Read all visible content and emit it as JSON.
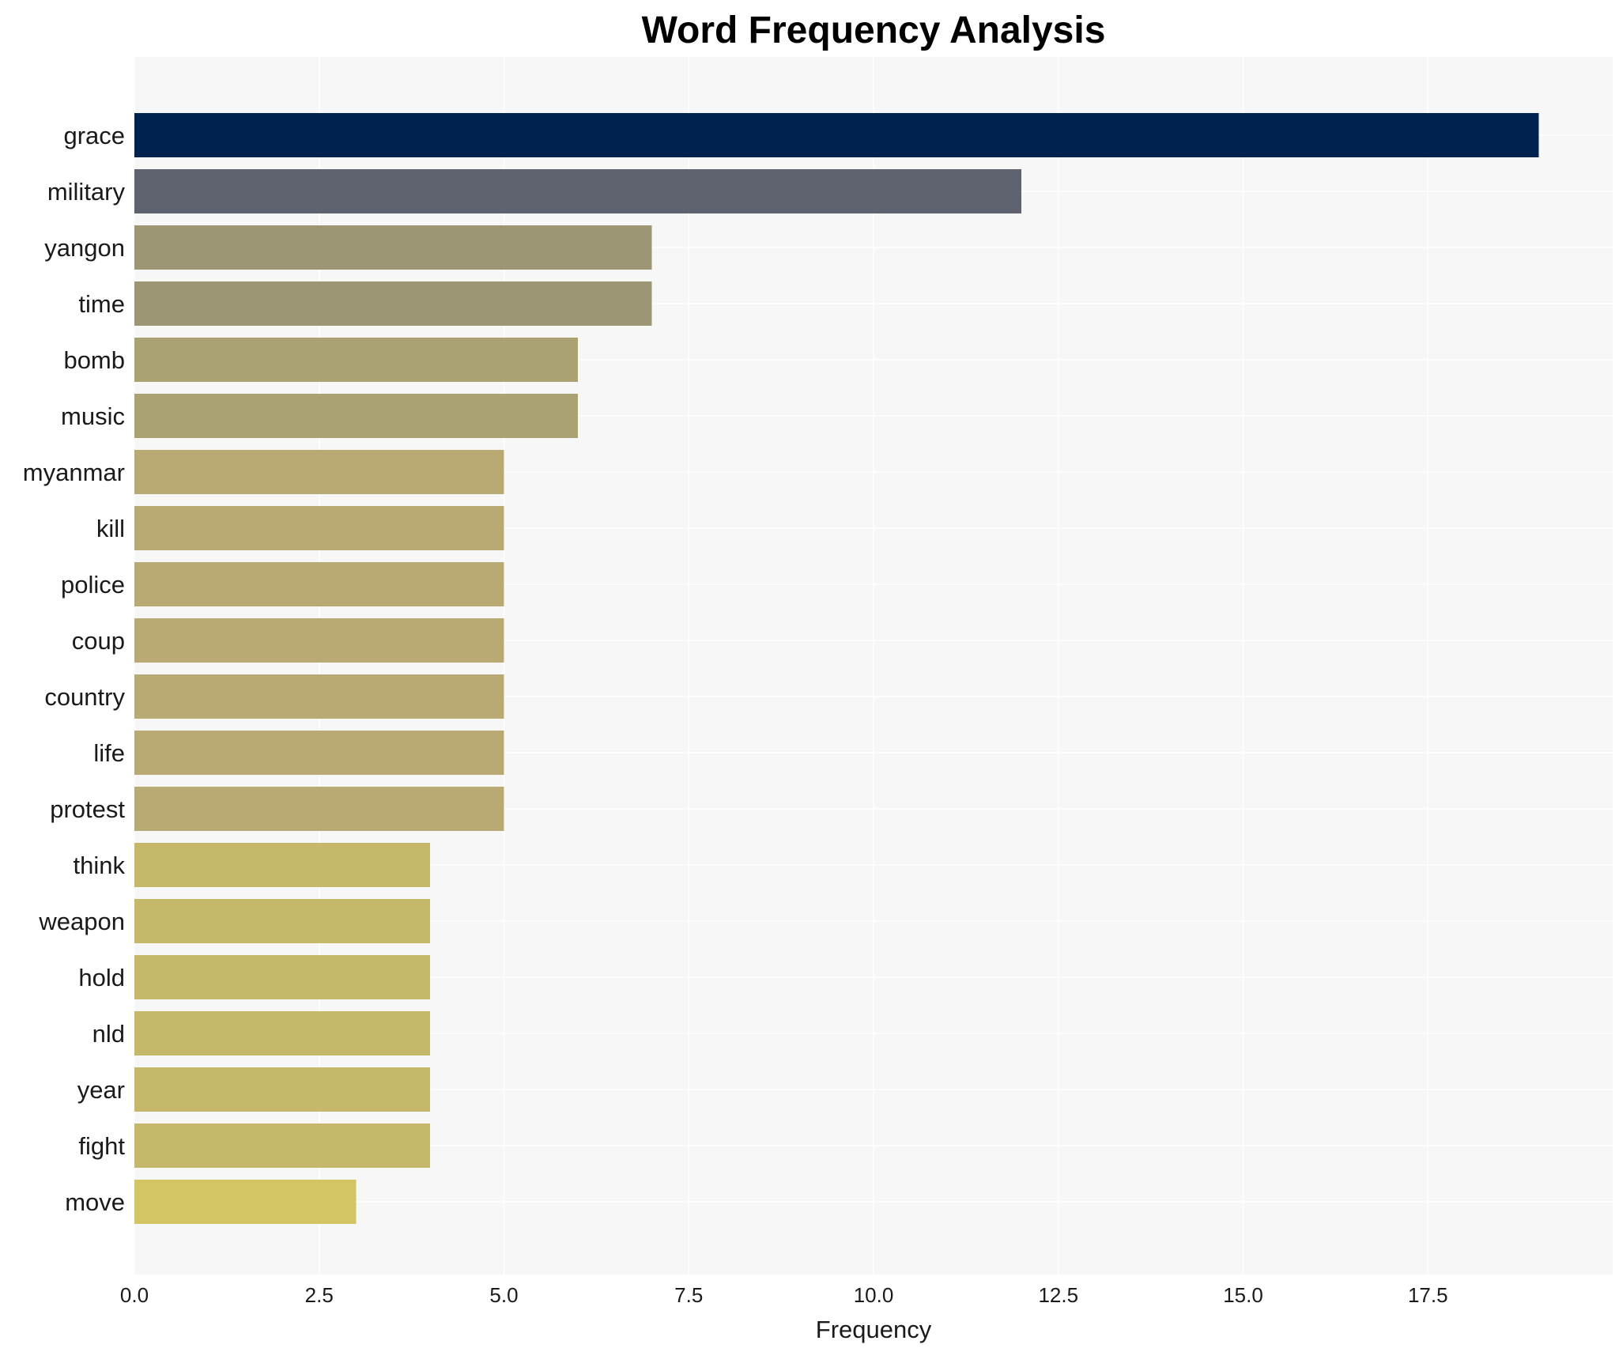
{
  "chart_data": {
    "type": "bar",
    "orientation": "horizontal",
    "title": "Word Frequency Analysis",
    "xlabel": "Frequency",
    "ylabel": "",
    "categories": [
      "grace",
      "military",
      "yangon",
      "time",
      "bomb",
      "music",
      "myanmar",
      "kill",
      "police",
      "coup",
      "country",
      "life",
      "protest",
      "think",
      "weapon",
      "hold",
      "nld",
      "year",
      "fight",
      "move"
    ],
    "values": [
      19,
      12,
      7,
      7,
      6,
      6,
      5,
      5,
      5,
      5,
      5,
      5,
      5,
      4,
      4,
      4,
      4,
      4,
      4,
      3
    ],
    "xlim": [
      0,
      20
    ],
    "xticks": [
      "0.0",
      "2.5",
      "5.0",
      "7.5",
      "10.0",
      "12.5",
      "15.0",
      "17.5"
    ],
    "xtick_values": [
      0,
      2.5,
      5,
      7.5,
      10,
      12.5,
      15,
      17.5
    ],
    "grid": true,
    "legend": "none",
    "colors": {
      "19": "#00224e",
      "12": "#5f636f",
      "7": "#9c9675",
      "6": "#aba274",
      "5": "#b8aa72",
      "4": "#c6b86b",
      "3": "#d3c464"
    },
    "plot_background": "#f7f7f7"
  }
}
